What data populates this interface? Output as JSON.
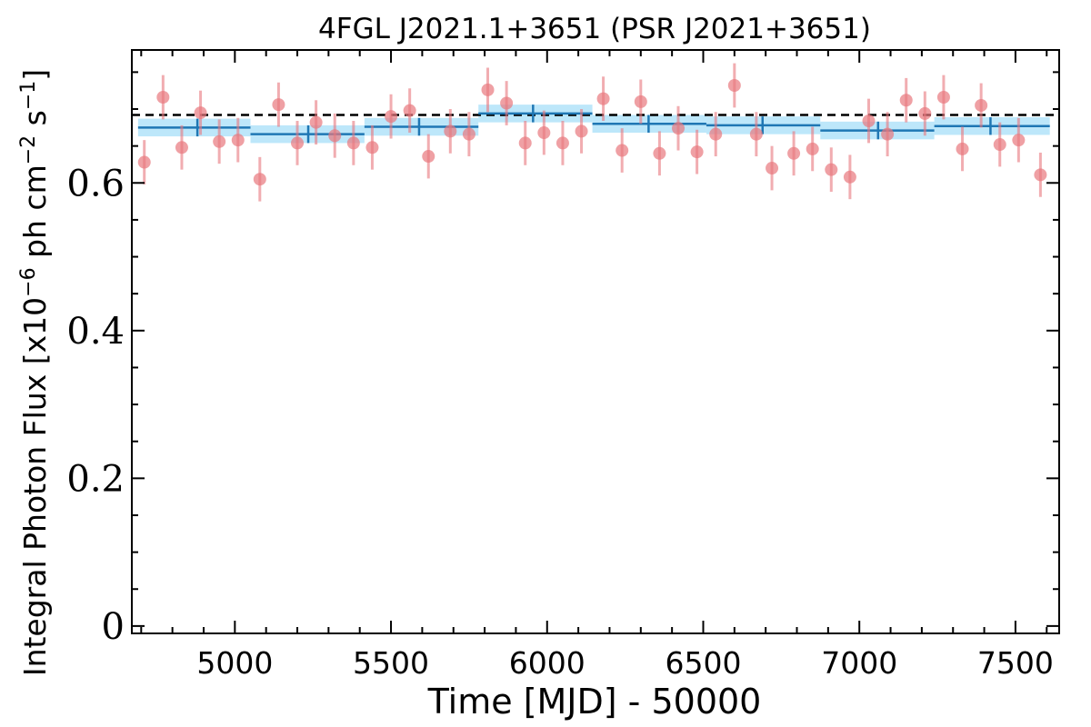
{
  "chart_data": {
    "type": "scatter",
    "title": "4FGL J2021.1+3651 (PSR J2021+3651)",
    "xlabel": "Time [MJD] - 50000",
    "ylabel": {
      "text_before": "Integral Photon Flux [x10",
      "exp_1": "−6",
      "text_middle": " ph cm",
      "exp_2": "−2",
      "text_s": " s",
      "exp_3": "−1",
      "text_after": "]"
    },
    "xlim": [
      4670,
      7640
    ],
    "ylim": [
      -0.01,
      0.78
    ],
    "xticks": [
      {
        "value": 5000,
        "label": "5000"
      },
      {
        "value": 5500,
        "label": "5500"
      },
      {
        "value": 6000,
        "label": "6000"
      },
      {
        "value": 6500,
        "label": "6500"
      },
      {
        "value": 7000,
        "label": "7000"
      },
      {
        "value": 7500,
        "label": "7500"
      }
    ],
    "yticks": [
      {
        "value": 0,
        "label": "0"
      },
      {
        "value": 0.2,
        "label": "0.2"
      },
      {
        "value": 0.4,
        "label": "0.4"
      },
      {
        "value": 0.6,
        "label": "0.6"
      }
    ],
    "mean_flux": 0.692,
    "colors": {
      "points": "#e8777d",
      "bins": "#1f77b4",
      "bands": "#87d3f5",
      "mean_line": "#000000"
    },
    "series": [
      {
        "kind": "short_bins",
        "x": [
          4710,
          4770,
          4830,
          4890,
          4950,
          5010,
          5080,
          5140,
          5200,
          5260,
          5320,
          5380,
          5440,
          5500,
          5560,
          5620,
          5690,
          5750,
          5810,
          5870,
          5930,
          5990,
          6050,
          6110,
          6180,
          6240,
          6300,
          6360,
          6420,
          6480,
          6540,
          6600,
          6670,
          6720,
          6790,
          6850,
          6910,
          6970,
          7030,
          7090,
          7150,
          7210,
          7270,
          7330,
          7390,
          7450,
          7510,
          7580
        ],
        "y": [
          0.628,
          0.716,
          0.648,
          0.695,
          0.656,
          0.658,
          0.605,
          0.706,
          0.654,
          0.682,
          0.664,
          0.654,
          0.648,
          0.69,
          0.698,
          0.636,
          0.67,
          0.666,
          0.726,
          0.708,
          0.654,
          0.668,
          0.654,
          0.67,
          0.714,
          0.644,
          0.71,
          0.64,
          0.674,
          0.642,
          0.666,
          0.732,
          0.666,
          0.62,
          0.64,
          0.646,
          0.618,
          0.608,
          0.684,
          0.666,
          0.712,
          0.694,
          0.716,
          0.646,
          0.705,
          0.652,
          0.658,
          0.611
        ],
        "yerr": [
          0.03,
          0.03,
          0.03,
          0.03,
          0.03,
          0.03,
          0.03,
          0.03,
          0.03,
          0.03,
          0.03,
          0.03,
          0.03,
          0.03,
          0.03,
          0.03,
          0.03,
          0.03,
          0.03,
          0.03,
          0.03,
          0.03,
          0.03,
          0.03,
          0.03,
          0.03,
          0.03,
          0.03,
          0.03,
          0.03,
          0.03,
          0.03,
          0.03,
          0.03,
          0.03,
          0.03,
          0.03,
          0.03,
          0.03,
          0.03,
          0.03,
          0.03,
          0.03,
          0.03,
          0.03,
          0.03,
          0.03,
          0.03
        ]
      },
      {
        "kind": "long_bins",
        "x": [
          4880,
          5235,
          5590,
          5955,
          6325,
          6690,
          7060,
          7420
        ],
        "xmin": [
          4690,
          5050,
          5415,
          5780,
          6145,
          6510,
          6875,
          7240
        ],
        "xmax": [
          5050,
          5415,
          5780,
          6145,
          6510,
          6875,
          7240,
          7610
        ],
        "y": [
          0.675,
          0.666,
          0.676,
          0.694,
          0.68,
          0.678,
          0.671,
          0.677
        ],
        "band_low": [
          0.663,
          0.654,
          0.664,
          0.682,
          0.668,
          0.666,
          0.659,
          0.665
        ],
        "band_high": [
          0.687,
          0.678,
          0.688,
          0.706,
          0.692,
          0.69,
          0.683,
          0.689
        ]
      }
    ]
  }
}
